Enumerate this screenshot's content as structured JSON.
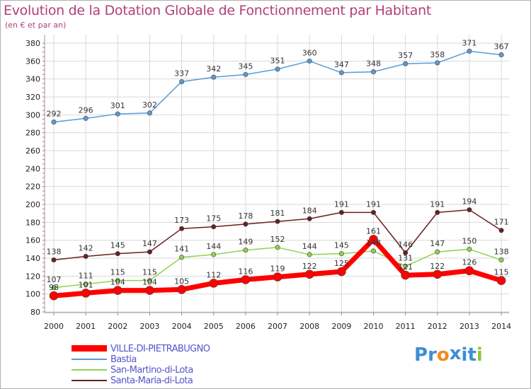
{
  "header": {
    "title": "Evolution de la Dotation Globale de Fonctionnement par Habitant",
    "subtitle": "(en € et par an)"
  },
  "chart_data": {
    "type": "line",
    "title": "Evolution de la Dotation Globale de Fonctionnement par Habitant",
    "subtitle": "(en € et par an)",
    "xlabel": "",
    "ylabel": "",
    "ylim": [
      80,
      380
    ],
    "ytick_step": 20,
    "grid": true,
    "legend_position": "bottom-left",
    "categories": [
      "2000",
      "2001",
      "2002",
      "2003",
      "2004",
      "2005",
      "2006",
      "2007",
      "2008",
      "2009",
      "2010",
      "2011",
      "2012",
      "2013",
      "2014"
    ],
    "series": [
      {
        "name": "Bastia",
        "color": "#5a9bd5",
        "values": [
          292,
          296,
          301,
          302,
          337,
          342,
          345,
          351,
          360,
          347,
          348,
          357,
          358,
          371,
          367
        ]
      },
      {
        "name": "Santa-Maria-di-Lota",
        "color": "#6b1f1f",
        "values": [
          138,
          142,
          145,
          147,
          173,
          175,
          178,
          181,
          184,
          191,
          191,
          146,
          191,
          194,
          171
        ]
      },
      {
        "name": "San-Martino-di-Lota",
        "color": "#8fd24e",
        "values": [
          107,
          111,
          115,
          115,
          141,
          144,
          149,
          152,
          144,
          145,
          148,
          131,
          147,
          150,
          138
        ]
      },
      {
        "name": "VILLE-DI-PIETRABUGNO",
        "color": "#ff0000",
        "values": [
          98,
          101,
          104,
          104,
          105,
          112,
          116,
          119,
          122,
          125,
          161,
          121,
          122,
          126,
          115
        ]
      }
    ]
  },
  "legend": {
    "items": [
      {
        "label": "VILLE-DI-PIETRABUGNO",
        "color": "#ff0000",
        "text_color": "#5555cc"
      },
      {
        "label": "Bastia",
        "color": "#5a9bd5",
        "text_color": "#5555cc"
      },
      {
        "label": "San-Martino-di-Lota",
        "color": "#8fd24e",
        "text_color": "#5555cc"
      },
      {
        "label": "Santa-Maria-di-Lota",
        "color": "#6b1f1f",
        "text_color": "#5555cc"
      }
    ]
  },
  "brand": {
    "letters": [
      "P",
      "r",
      "o",
      "x",
      "i",
      "t",
      "i"
    ],
    "colors": [
      "#3b8fd6",
      "#3b8fd6",
      "#f08a1c",
      "#3b8fd6",
      "#3b8fd6",
      "#3b8fd6",
      "#8cc63f"
    ]
  }
}
